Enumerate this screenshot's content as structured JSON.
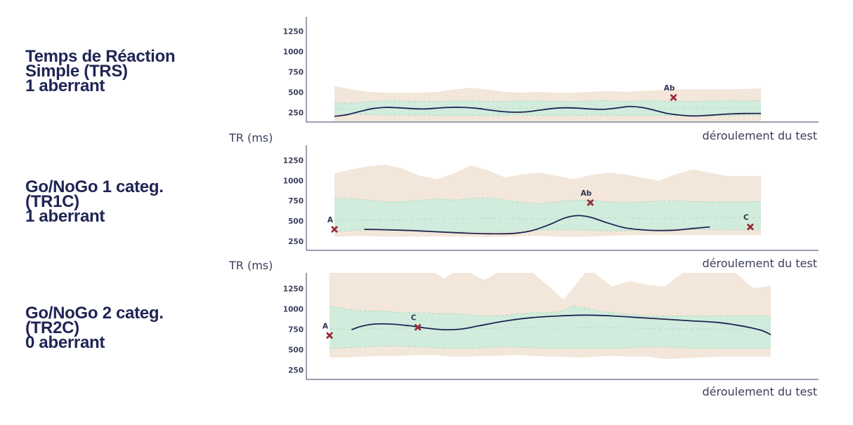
{
  "panels": [
    {
      "title_lines": [
        "Temps de Réaction",
        "Simple (TRS)",
        "1 aberrant"
      ]
    },
    {
      "title_lines": [
        "Go/NoGo 1 categ.",
        "(TR1C)",
        "1 aberrant"
      ]
    },
    {
      "title_lines": [
        "Go/NoGo 2 categ.",
        "(TR2C)",
        "0 aberrant"
      ]
    }
  ],
  "colors": {
    "outer_band": "#f3e6da",
    "inner_band": "#d1ecdc",
    "inner_edge": "#aedbc2",
    "median_dash": "#b9dcc9",
    "line": "#1f2454",
    "marker": "#9b2b37",
    "axis": "#3a3f5c"
  },
  "chart_data": [
    {
      "type": "line",
      "xlabel": "déroulement du test",
      "ylabel": "TR (ms)",
      "yticks": [
        250,
        500,
        750,
        1000,
        1250
      ],
      "ylim": [
        140,
        1430
      ],
      "xlim": [
        0,
        1
      ],
      "band_x": [
        0,
        0.04,
        0.08,
        0.12,
        0.16,
        0.2,
        0.24,
        0.28,
        0.32,
        0.36,
        0.4,
        0.44,
        0.48,
        0.52,
        0.56,
        0.6,
        0.64,
        0.68,
        0.72,
        0.76,
        0.8,
        0.84,
        0.88,
        0.92,
        0.96,
        1.0
      ],
      "outer_upper": [
        580,
        540,
        510,
        500,
        500,
        500,
        510,
        540,
        560,
        540,
        510,
        500,
        510,
        500,
        500,
        510,
        520,
        510,
        520,
        530,
        540,
        540,
        540,
        540,
        545,
        555
      ],
      "outer_lower": [
        150,
        150,
        150,
        150,
        150,
        150,
        150,
        150,
        150,
        150,
        150,
        150,
        150,
        150,
        150,
        150,
        150,
        150,
        150,
        150,
        150,
        150,
        150,
        150,
        150,
        150
      ],
      "inner_upper": [
        380,
        370,
        390,
        400,
        400,
        390,
        390,
        400,
        400,
        390,
        390,
        400,
        400,
        390,
        390,
        400,
        400,
        390,
        400,
        400,
        390,
        390,
        400,
        400,
        400,
        400
      ],
      "inner_lower": [
        240,
        240,
        230,
        225,
        225,
        225,
        220,
        220,
        220,
        220,
        225,
        225,
        220,
        220,
        220,
        225,
        225,
        220,
        220,
        220,
        220,
        220,
        220,
        220,
        225,
        225
      ],
      "median": [
        300,
        300,
        310,
        315,
        315,
        310,
        310,
        310,
        315,
        310,
        305,
        310,
        310,
        305,
        305,
        310,
        310,
        305,
        310,
        310,
        305,
        305,
        310,
        310,
        310,
        310
      ],
      "series": [
        {
          "x": [
            0,
            0.03,
            0.06,
            0.09,
            0.12,
            0.15,
            0.18,
            0.21,
            0.24,
            0.27,
            0.3,
            0.33,
            0.36,
            0.39,
            0.42,
            0.45,
            0.48,
            0.51,
            0.54,
            0.57,
            0.6,
            0.63,
            0.66,
            0.69,
            0.72,
            0.75,
            0.78,
            0.81,
            0.84,
            0.87,
            0.9,
            0.93,
            0.96,
            1.0
          ],
          "values": [
            210,
            230,
            270,
            305,
            320,
            315,
            305,
            300,
            310,
            320,
            320,
            310,
            290,
            270,
            260,
            265,
            285,
            305,
            315,
            310,
            300,
            295,
            310,
            330,
            320,
            285,
            245,
            225,
            215,
            220,
            230,
            240,
            245,
            245
          ]
        }
      ],
      "points": [
        {
          "label": "Ab",
          "x": 0.795,
          "y": 440
        }
      ]
    },
    {
      "type": "line",
      "xlabel": "déroulement du test",
      "ylabel": "TR (ms)",
      "yticks": [
        250,
        500,
        750,
        1000,
        1250
      ],
      "ylim": [
        140,
        1440
      ],
      "xlim": [
        0,
        1
      ],
      "band_x": [
        0,
        0.04,
        0.08,
        0.12,
        0.16,
        0.2,
        0.24,
        0.28,
        0.32,
        0.36,
        0.4,
        0.44,
        0.48,
        0.52,
        0.56,
        0.6,
        0.64,
        0.68,
        0.72,
        0.76,
        0.8,
        0.84,
        0.88,
        0.92,
        0.96,
        1.0
      ],
      "outer_upper": [
        1090,
        1140,
        1180,
        1200,
        1150,
        1060,
        1020,
        1090,
        1190,
        1130,
        1040,
        1080,
        1100,
        1060,
        1020,
        1070,
        1100,
        1080,
        1040,
        1000,
        1080,
        1140,
        1100,
        1060,
        1060,
        1060
      ],
      "outer_lower": [
        310,
        315,
        315,
        310,
        310,
        310,
        310,
        310,
        310,
        305,
        310,
        315,
        320,
        310,
        305,
        310,
        320,
        325,
        330,
        330,
        330,
        330,
        330,
        330,
        330,
        330
      ],
      "inner_upper": [
        780,
        780,
        760,
        740,
        740,
        760,
        780,
        760,
        780,
        790,
        760,
        730,
        720,
        740,
        760,
        760,
        740,
        730,
        740,
        750,
        750,
        745,
        740,
        740,
        740,
        745
      ],
      "inner_lower": [
        370,
        385,
        390,
        395,
        390,
        385,
        375,
        370,
        370,
        370,
        370,
        380,
        390,
        395,
        395,
        390,
        380,
        380,
        390,
        395,
        400,
        400,
        395,
        395,
        395,
        395
      ],
      "median": [
        520,
        520,
        515,
        515,
        520,
        525,
        530,
        530,
        535,
        540,
        535,
        530,
        525,
        525,
        530,
        535,
        540,
        540,
        535,
        535,
        535,
        540,
        545,
        545,
        540,
        540
      ],
      "series": [
        {
          "x": [
            0.07,
            0.12,
            0.18,
            0.24,
            0.3,
            0.36,
            0.42,
            0.46,
            0.5,
            0.54,
            0.57,
            0.6,
            0.64,
            0.68,
            0.72,
            0.76,
            0.8,
            0.84,
            0.88
          ],
          "values": [
            400,
            395,
            385,
            370,
            355,
            345,
            350,
            380,
            450,
            540,
            570,
            550,
            480,
            420,
            395,
            385,
            390,
            410,
            430
          ]
        }
      ],
      "points": [
        {
          "label": "A",
          "x": 0.0,
          "y": 400
        },
        {
          "label": "Ab",
          "x": 0.6,
          "y": 730
        },
        {
          "label": "C",
          "x": 0.975,
          "y": 430
        }
      ]
    },
    {
      "type": "line",
      "xlabel": "déroulement du test",
      "ylabel": "",
      "yticks": [
        250,
        500,
        750,
        1000,
        1250
      ],
      "ylim": [
        140,
        1450
      ],
      "xlim": [
        0,
        1
      ],
      "band_x": [
        0,
        0.04,
        0.08,
        0.12,
        0.16,
        0.2,
        0.24,
        0.26,
        0.28,
        0.32,
        0.35,
        0.38,
        0.42,
        0.46,
        0.5,
        0.53,
        0.55,
        0.58,
        0.6,
        0.64,
        0.68,
        0.72,
        0.76,
        0.8,
        0.84,
        0.88,
        0.92,
        0.96,
        1.0
      ],
      "outer_upper": [
        1450,
        1450,
        1450,
        1450,
        1450,
        1450,
        1450,
        1380,
        1450,
        1450,
        1360,
        1450,
        1450,
        1450,
        1270,
        1120,
        1250,
        1450,
        1450,
        1280,
        1350,
        1300,
        1280,
        1450,
        1450,
        1450,
        1450,
        1260,
        1290
      ],
      "outer_lower": [
        410,
        410,
        420,
        430,
        430,
        440,
        440,
        430,
        420,
        420,
        430,
        430,
        440,
        430,
        420,
        420,
        410,
        410,
        420,
        430,
        420,
        420,
        390,
        400,
        410,
        420,
        420,
        420,
        420
      ],
      "inner_upper": [
        1040,
        1000,
        980,
        980,
        960,
        960,
        950,
        950,
        950,
        930,
        920,
        920,
        940,
        960,
        960,
        980,
        1040,
        1020,
        990,
        960,
        940,
        920,
        920,
        920,
        920,
        920,
        920,
        920,
        920
      ],
      "inner_lower": [
        520,
        530,
        540,
        550,
        550,
        540,
        530,
        520,
        520,
        520,
        530,
        540,
        540,
        530,
        520,
        520,
        520,
        520,
        520,
        520,
        530,
        540,
        540,
        530,
        520,
        520,
        520,
        520,
        520
      ],
      "median": [
        760,
        760,
        765,
        770,
        770,
        770,
        765,
        760,
        760,
        760,
        765,
        770,
        775,
        775,
        770,
        770,
        775,
        780,
        780,
        775,
        770,
        765,
        760,
        760,
        760,
        755,
        755,
        755,
        755
      ],
      "series": [
        {
          "x": [
            0.05,
            0.07,
            0.1,
            0.14,
            0.18,
            0.22,
            0.26,
            0.3,
            0.34,
            0.4,
            0.46,
            0.52,
            0.58,
            0.64,
            0.7,
            0.76,
            0.82,
            0.88,
            0.92,
            0.95,
            0.98,
            1.0
          ],
          "values": [
            750,
            790,
            820,
            820,
            800,
            770,
            750,
            760,
            800,
            860,
            900,
            920,
            930,
            920,
            900,
            880,
            860,
            840,
            810,
            780,
            740,
            690
          ]
        }
      ],
      "points": [
        {
          "label": "A",
          "x": 0.0,
          "y": 680
        },
        {
          "label": "C",
          "x": 0.2,
          "y": 780
        }
      ]
    }
  ]
}
